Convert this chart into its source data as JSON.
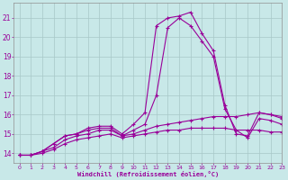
{
  "background_color": "#c8e8e8",
  "grid_color": "#a8c8c8",
  "line_color": "#990099",
  "marker_color": "#990099",
  "xlabel": "Windchill (Refroidissement éolien,°C)",
  "xlim": [
    -0.5,
    23
  ],
  "ylim": [
    13.5,
    21.8
  ],
  "yticks": [
    14,
    15,
    16,
    17,
    18,
    19,
    20,
    21
  ],
  "xticks": [
    0,
    1,
    2,
    3,
    4,
    5,
    6,
    7,
    8,
    9,
    10,
    11,
    12,
    13,
    14,
    15,
    16,
    17,
    18,
    19,
    20,
    21,
    22,
    23
  ],
  "series": [
    {
      "x": [
        0,
        1,
        2,
        3,
        4,
        5,
        6,
        7,
        8,
        9,
        10,
        11,
        12,
        13,
        14,
        15,
        16,
        17,
        18,
        19,
        20,
        21,
        22,
        23
      ],
      "y": [
        13.9,
        13.9,
        14.1,
        14.5,
        14.9,
        15.0,
        15.3,
        15.4,
        15.4,
        15.0,
        15.5,
        16.1,
        20.6,
        21.0,
        21.1,
        21.3,
        20.2,
        19.3,
        16.5,
        15.0,
        14.9,
        16.1,
        16.0,
        15.9
      ]
    },
    {
      "x": [
        0,
        1,
        2,
        3,
        4,
        5,
        6,
        7,
        8,
        9,
        10,
        11,
        12,
        13,
        14,
        15,
        16,
        17,
        18,
        19,
        20,
        21,
        22,
        23
      ],
      "y": [
        13.9,
        13.9,
        14.1,
        14.5,
        14.9,
        15.0,
        15.2,
        15.3,
        15.3,
        14.9,
        15.2,
        15.5,
        17.0,
        20.5,
        21.0,
        20.6,
        19.8,
        19.0,
        16.3,
        15.2,
        14.8,
        15.8,
        15.7,
        15.5
      ]
    },
    {
      "x": [
        0,
        1,
        2,
        3,
        4,
        5,
        6,
        7,
        8,
        9,
        10,
        11,
        12,
        13,
        14,
        15,
        16,
        17,
        18,
        19,
        20,
        21,
        22,
        23
      ],
      "y": [
        13.9,
        13.9,
        14.1,
        14.3,
        14.7,
        14.9,
        15.0,
        15.2,
        15.2,
        14.9,
        15.0,
        15.2,
        15.4,
        15.5,
        15.6,
        15.7,
        15.8,
        15.9,
        15.9,
        15.9,
        16.0,
        16.1,
        16.0,
        15.8
      ]
    },
    {
      "x": [
        0,
        1,
        2,
        3,
        4,
        5,
        6,
        7,
        8,
        9,
        10,
        11,
        12,
        13,
        14,
        15,
        16,
        17,
        18,
        19,
        20,
        21,
        22,
        23
      ],
      "y": [
        13.9,
        13.9,
        14.0,
        14.2,
        14.5,
        14.7,
        14.8,
        14.9,
        15.0,
        14.8,
        14.9,
        15.0,
        15.1,
        15.2,
        15.2,
        15.3,
        15.3,
        15.3,
        15.3,
        15.2,
        15.2,
        15.2,
        15.1,
        15.1
      ]
    }
  ]
}
